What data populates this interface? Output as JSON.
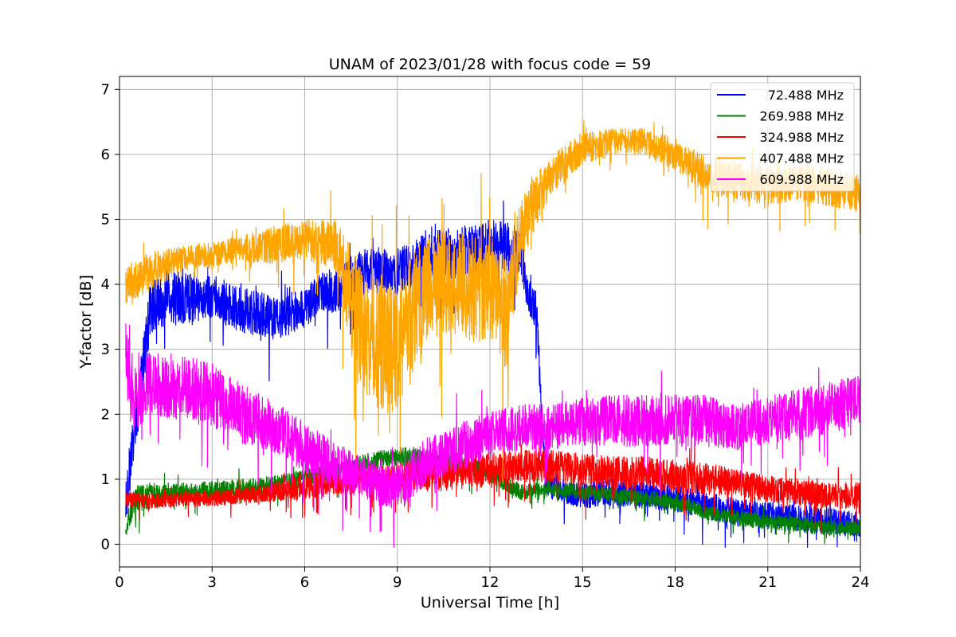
{
  "chart_data": {
    "type": "line",
    "title": "UNAM of 2023/01/28 with focus code = 59",
    "xlabel": "Universal Time [h]",
    "ylabel": "Y-factor [dB]",
    "xlim": [
      0,
      24
    ],
    "ylim": [
      -0.35,
      7.2
    ],
    "xticks": [
      0,
      3,
      6,
      9,
      12,
      15,
      18,
      21,
      24
    ],
    "yticks": [
      0,
      1,
      2,
      3,
      4,
      5,
      6,
      7
    ],
    "grid": true,
    "legend_position": "top-right",
    "series": [
      {
        "name": " 72.488 MHz",
        "color": "#0000ff",
        "x": [
          0.2,
          1,
          2,
          3,
          4,
          5,
          6,
          6.5,
          7,
          7.5,
          8,
          9,
          10,
          11,
          12,
          12.5,
          13,
          13.2,
          13.5,
          13.8,
          14,
          15,
          16,
          17,
          18,
          19,
          20,
          21,
          22,
          23,
          24
        ],
        "mean": [
          0.6,
          3.7,
          3.8,
          3.8,
          3.6,
          3.5,
          3.6,
          3.9,
          3.9,
          4.1,
          4.2,
          4.2,
          4.4,
          4.5,
          4.6,
          4.6,
          4.5,
          3.9,
          3.6,
          1.0,
          0.9,
          0.75,
          0.8,
          0.75,
          0.7,
          0.6,
          0.5,
          0.45,
          0.4,
          0.35,
          0.3
        ],
        "spread": [
          0.4,
          0.45,
          0.4,
          0.35,
          0.35,
          0.35,
          0.3,
          0.3,
          0.35,
          0.35,
          0.35,
          0.35,
          0.4,
          0.4,
          0.4,
          0.4,
          0.4,
          0.3,
          0.3,
          0.2,
          0.2,
          0.2,
          0.2,
          0.2,
          0.2,
          0.2,
          0.2,
          0.2,
          0.2,
          0.2,
          0.2
        ]
      },
      {
        "name": "269.988 MHz",
        "color": "#008000",
        "x": [
          0.2,
          0.5,
          1,
          2,
          3,
          4,
          5,
          6,
          7,
          8,
          9,
          10,
          11,
          12,
          13,
          14,
          15,
          16,
          17,
          18,
          19,
          20,
          21,
          22,
          23,
          24
        ],
        "mean": [
          0.2,
          0.7,
          0.75,
          0.8,
          0.82,
          0.85,
          0.9,
          1.0,
          1.1,
          1.25,
          1.35,
          1.3,
          1.2,
          1.1,
          0.8,
          0.85,
          0.8,
          0.75,
          0.7,
          0.65,
          0.5,
          0.4,
          0.35,
          0.3,
          0.25,
          0.25
        ],
        "spread": [
          0.1,
          0.2,
          0.2,
          0.15,
          0.15,
          0.15,
          0.15,
          0.15,
          0.15,
          0.15,
          0.15,
          0.15,
          0.15,
          0.15,
          0.12,
          0.12,
          0.12,
          0.12,
          0.12,
          0.12,
          0.12,
          0.12,
          0.12,
          0.12,
          0.12,
          0.12
        ]
      },
      {
        "name": "324.988 MHz",
        "color": "#ff0000",
        "x": [
          0.2,
          1,
          2,
          3,
          4,
          5,
          6,
          7,
          8,
          9,
          10,
          11,
          12,
          13,
          14,
          15,
          16,
          17,
          18,
          19,
          20,
          21,
          22,
          23,
          24
        ],
        "mean": [
          0.7,
          0.65,
          0.7,
          0.7,
          0.75,
          0.8,
          0.9,
          0.95,
          1.0,
          1.05,
          1.05,
          1.1,
          1.15,
          1.2,
          1.2,
          1.15,
          1.1,
          1.1,
          1.05,
          1.0,
          0.95,
          0.85,
          0.8,
          0.75,
          0.75
        ],
        "spread": [
          0.12,
          0.12,
          0.12,
          0.12,
          0.12,
          0.15,
          0.2,
          0.2,
          0.2,
          0.2,
          0.25,
          0.25,
          0.25,
          0.25,
          0.25,
          0.25,
          0.25,
          0.25,
          0.25,
          0.25,
          0.2,
          0.2,
          0.2,
          0.2,
          0.2
        ]
      },
      {
        "name": "407.488 MHz",
        "color": "#ffa500",
        "x": [
          0.2,
          1,
          2,
          3,
          4,
          5,
          6,
          7,
          7.5,
          8,
          9,
          9.5,
          10,
          11,
          12,
          12.5,
          13,
          13.5,
          14,
          15,
          16,
          17,
          18,
          19,
          20,
          21,
          22,
          23,
          24
        ],
        "mean": [
          4.0,
          4.2,
          4.4,
          4.45,
          4.55,
          4.6,
          4.7,
          4.6,
          3.8,
          3.2,
          3.0,
          3.5,
          4.0,
          4.0,
          3.9,
          3.5,
          4.8,
          5.3,
          5.7,
          6.1,
          6.2,
          6.2,
          6.0,
          5.7,
          5.6,
          5.5,
          5.6,
          5.5,
          5.4
        ],
        "spread": [
          0.3,
          0.3,
          0.2,
          0.2,
          0.2,
          0.3,
          0.3,
          0.4,
          0.8,
          1.0,
          1.1,
          1.0,
          0.8,
          0.8,
          0.9,
          0.9,
          0.5,
          0.4,
          0.3,
          0.25,
          0.2,
          0.2,
          0.25,
          0.3,
          0.3,
          0.3,
          0.3,
          0.3,
          0.3
        ]
      },
      {
        "name": "609.988 MHz",
        "color": "#ff00ff",
        "x": [
          0.2,
          0.5,
          1,
          2,
          3,
          4,
          5,
          6,
          7,
          8,
          9,
          10,
          11,
          12,
          13,
          14,
          15,
          16,
          17,
          18,
          19,
          20,
          21,
          22,
          23,
          24
        ],
        "mean": [
          2.8,
          2.2,
          2.5,
          2.4,
          2.3,
          2.0,
          1.8,
          1.5,
          1.2,
          1.0,
          0.9,
          1.3,
          1.5,
          1.7,
          1.8,
          1.8,
          1.9,
          1.9,
          1.9,
          1.9,
          1.9,
          1.8,
          1.9,
          2.0,
          2.1,
          2.2
        ],
        "spread": [
          0.7,
          0.5,
          0.5,
          0.5,
          0.5,
          0.45,
          0.4,
          0.4,
          0.35,
          0.35,
          0.4,
          0.35,
          0.35,
          0.35,
          0.35,
          0.35,
          0.35,
          0.4,
          0.4,
          0.4,
          0.4,
          0.35,
          0.35,
          0.4,
          0.4,
          0.4
        ]
      }
    ]
  }
}
